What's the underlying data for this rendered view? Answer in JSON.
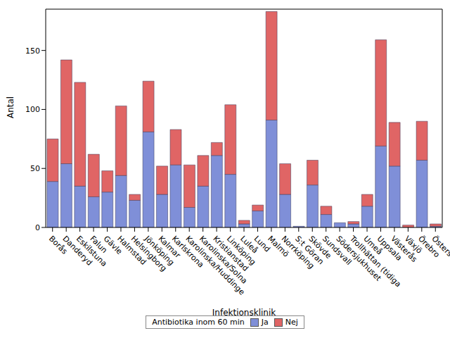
{
  "chart_data": {
    "type": "bar",
    "stacked": true,
    "x_label": "Infektionsklinik",
    "y_label": "Antal",
    "legend_title": "Antibiotika inom 60 min",
    "legend": "bottom",
    "grid": false,
    "categories": [
      "Borås",
      "Danderyd",
      "Eskilstuna",
      "Falun",
      "Gävle",
      "Halmstad",
      "Helsingborg",
      "Jönköping",
      "Kalmar",
      "Karlskrona",
      "Karolinska/Huddinge",
      "Karolinska/Solna",
      "Kristianstad",
      "Linköping",
      "Luleå",
      "Lund",
      "Malmö",
      "Norrköping",
      "S:t Göran",
      "Skövde",
      "Sundsvall",
      "Södersjukhuset",
      "Trollhättan (tidiga",
      "Umeå",
      "Uppsala",
      "Västerås",
      "Växjö",
      "Örebro",
      "Östersund"
    ],
    "series": [
      {
        "name": "Ja",
        "color": "#7f8fd8",
        "values": [
          39,
          54,
          35,
          26,
          30,
          44,
          23,
          81,
          28,
          53,
          17,
          35,
          61,
          45,
          3,
          14,
          91,
          28,
          1,
          36,
          11,
          4,
          3,
          18,
          69,
          52,
          0,
          57,
          1
        ]
      },
      {
        "name": "Nej",
        "color": "#e06565",
        "values": [
          36,
          88,
          88,
          36,
          18,
          59,
          5,
          43,
          24,
          30,
          36,
          26,
          11,
          59,
          3,
          5,
          92,
          26,
          0,
          21,
          7,
          0,
          2,
          10,
          90,
          37,
          2,
          33,
          2
        ]
      }
    ],
    "ylim": [
      0,
      185
    ],
    "yticks": [
      0,
      50,
      100,
      150
    ]
  }
}
